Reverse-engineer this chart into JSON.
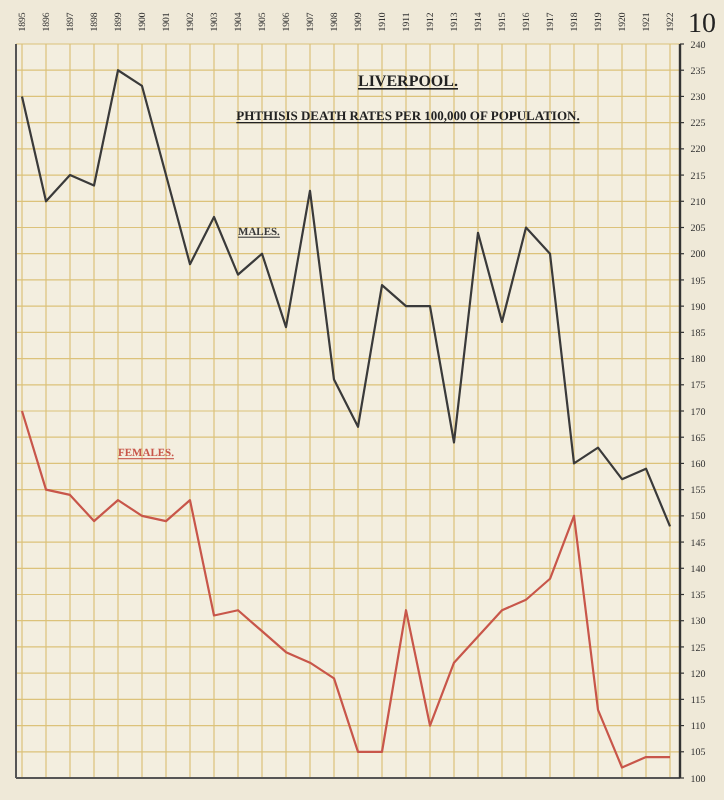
{
  "chart_data": {
    "type": "line",
    "title": "LIVERPOOL.",
    "subtitle": "PHTHISIS DEATH RATES PER 100,000 OF POPULATION.",
    "annotations": [
      "10"
    ],
    "categories": [
      "1895",
      "1896",
      "1897",
      "1898",
      "1899",
      "1900",
      "1901",
      "1902",
      "1903",
      "1904",
      "1905",
      "1906",
      "1907",
      "1908",
      "1909",
      "1910",
      "1911",
      "1912",
      "1913",
      "1914",
      "1915",
      "1916",
      "1917",
      "1918",
      "1919",
      "1920",
      "1921",
      "1922"
    ],
    "series": [
      {
        "name": "MALES.",
        "color": "#3a3a3a",
        "values": [
          230,
          210,
          215,
          213,
          235,
          232,
          215,
          198,
          207,
          196,
          200,
          186,
          212,
          176,
          167,
          194,
          190,
          190,
          164,
          204,
          187,
          205,
          200,
          160,
          163,
          157,
          159,
          148
        ]
      },
      {
        "name": "FEMALES.",
        "color": "#c8564a",
        "values": [
          170,
          155,
          154,
          149,
          153,
          150,
          149,
          153,
          131,
          132,
          128,
          124,
          122,
          119,
          105,
          105,
          132,
          110,
          122,
          127,
          132,
          134,
          138,
          150,
          113,
          102,
          104,
          104
        ]
      }
    ],
    "ylim": [
      100,
      240
    ],
    "yticks": [
      100,
      105,
      110,
      115,
      120,
      125,
      130,
      135,
      140,
      145,
      150,
      155,
      160,
      165,
      170,
      175,
      180,
      185,
      190,
      195,
      200,
      205,
      210,
      215,
      220,
      225,
      230,
      235,
      240
    ],
    "grid": true,
    "marker": "none",
    "line_style": "solid"
  }
}
